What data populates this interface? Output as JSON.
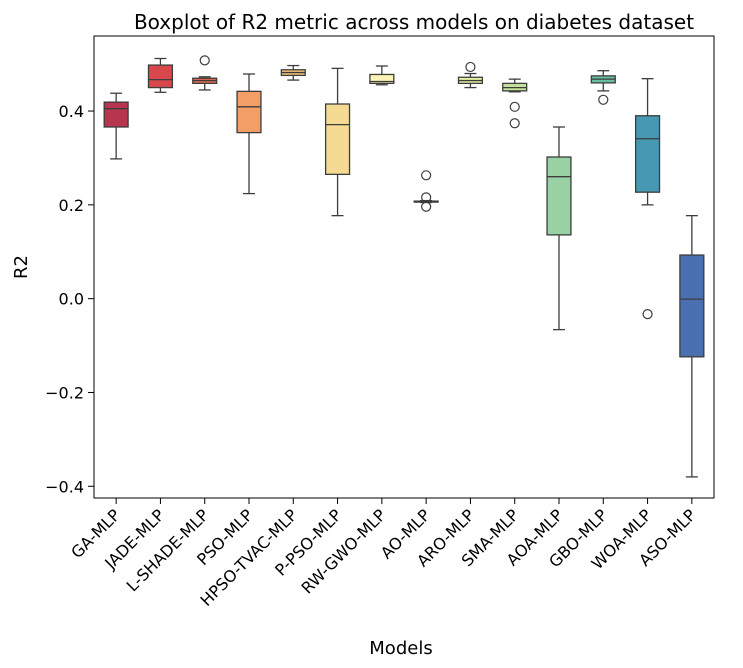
{
  "chart_data": {
    "type": "boxplot",
    "title": "Boxplot of R2 metric across models on diabetes dataset",
    "xlabel": "Models",
    "ylabel": "R2",
    "ylim": [
      -0.425,
      0.56
    ],
    "yticks": [
      0.4,
      0.2,
      0.0,
      -0.2,
      -0.4
    ],
    "ytick_labels": [
      "0.4",
      "0.2",
      "0.0",
      "−0.2",
      "−0.4"
    ],
    "grid": false,
    "legend": "none",
    "categories": [
      "GA-MLP",
      "JADE-MLP",
      "L-SHADE-MLP",
      "PSO-MLP",
      "HPSO-TVAC-MLP",
      "P-PSO-MLP",
      "RW-GWO-MLP",
      "AO-MLP",
      "ARO-MLP",
      "SMA-MLP",
      "AOA-MLP",
      "GBO-MLP",
      "WOA-MLP",
      "ASO-MLP"
    ],
    "boxes": [
      {
        "category": "GA-MLP",
        "whisker_low": 0.298,
        "q1": 0.366,
        "median": 0.405,
        "q3": 0.419,
        "whisker_high": 0.438,
        "outliers": [],
        "color": "#b8344f"
      },
      {
        "category": "JADE-MLP",
        "whisker_low": 0.44,
        "q1": 0.45,
        "median": 0.467,
        "q3": 0.498,
        "whisker_high": 0.512,
        "outliers": [],
        "color": "#d9474d"
      },
      {
        "category": "L-SHADE-MLP",
        "whisker_low": 0.445,
        "q1": 0.459,
        "median": 0.465,
        "q3": 0.47,
        "whisker_high": 0.473,
        "outliers": [
          0.508
        ],
        "color": "#ee6a50"
      },
      {
        "category": "PSO-MLP",
        "whisker_low": 0.224,
        "q1": 0.354,
        "median": 0.409,
        "q3": 0.442,
        "whisker_high": 0.479,
        "outliers": [],
        "color": "#f29e66"
      },
      {
        "category": "HPSO-TVAC-MLP",
        "whisker_low": 0.466,
        "q1": 0.476,
        "median": 0.482,
        "q3": 0.488,
        "whisker_high": 0.497,
        "outliers": [],
        "color": "#fbc477"
      },
      {
        "category": "P-PSO-MLP",
        "whisker_low": 0.177,
        "q1": 0.265,
        "median": 0.371,
        "q3": 0.415,
        "whisker_high": 0.491,
        "outliers": [],
        "color": "#f4da92"
      },
      {
        "category": "RW-GWO-MLP",
        "whisker_low": 0.456,
        "q1": 0.459,
        "median": 0.463,
        "q3": 0.478,
        "whisker_high": 0.496,
        "outliers": [],
        "color": "#fcf3b4"
      },
      {
        "category": "AO-MLP",
        "whisker_low": 0.205,
        "q1": 0.206,
        "median": 0.207,
        "q3": 0.208,
        "whisker_high": 0.209,
        "outliers": [
          0.263,
          0.216,
          0.196
        ],
        "color": "#f7f4b6"
      },
      {
        "category": "ARO-MLP",
        "whisker_low": 0.45,
        "q1": 0.459,
        "median": 0.465,
        "q3": 0.472,
        "whisker_high": 0.48,
        "outliers": [
          0.494
        ],
        "color": "#e9f4a4"
      },
      {
        "category": "SMA-MLP",
        "whisker_low": 0.441,
        "q1": 0.443,
        "median": 0.45,
        "q3": 0.459,
        "whisker_high": 0.468,
        "outliers": [
          0.409,
          0.374
        ],
        "color": "#c5e39a"
      },
      {
        "category": "AOA-MLP",
        "whisker_low": -0.066,
        "q1": 0.136,
        "median": 0.26,
        "q3": 0.302,
        "whisker_high": 0.366,
        "outliers": [],
        "color": "#98d1a4"
      },
      {
        "category": "GBO-MLP",
        "whisker_low": 0.443,
        "q1": 0.46,
        "median": 0.468,
        "q3": 0.475,
        "whisker_high": 0.486,
        "outliers": [
          0.424
        ],
        "color": "#67bea4"
      },
      {
        "category": "WOA-MLP",
        "whisker_low": 0.2,
        "q1": 0.227,
        "median": 0.341,
        "q3": 0.39,
        "whisker_high": 0.469,
        "outliers": [
          -0.033
        ],
        "color": "#4698b3"
      },
      {
        "category": "ASO-MLP",
        "whisker_low": -0.38,
        "q1": -0.124,
        "median": -0.001,
        "q3": 0.093,
        "whisker_high": 0.177,
        "outliers": [],
        "color": "#4a70b1"
      }
    ]
  }
}
